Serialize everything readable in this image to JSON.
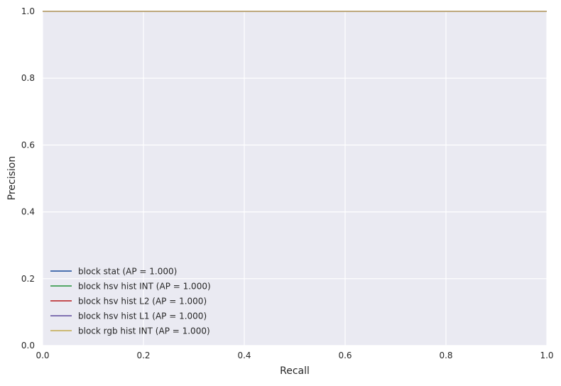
{
  "chart_data": {
    "type": "line",
    "title": "",
    "xlabel": "Recall",
    "ylabel": "Precision",
    "xlim": [
      0.0,
      1.0
    ],
    "ylim": [
      0.0,
      1.0
    ],
    "x_ticks": [
      "0.0",
      "0.2",
      "0.4",
      "0.6",
      "0.8",
      "1.0"
    ],
    "y_ticks": [
      "0.0",
      "0.2",
      "0.4",
      "0.6",
      "0.8",
      "1.0"
    ],
    "grid": true,
    "legend_position": "lower-left",
    "series": [
      {
        "name": "block stat (AP = 1.000)",
        "color": "#4c72b0",
        "x": [
          0.0,
          1.0
        ],
        "y": [
          1.0,
          1.0
        ]
      },
      {
        "name": "block hsv hist INT (AP = 1.000)",
        "color": "#55a868",
        "x": [
          0.0,
          1.0
        ],
        "y": [
          1.0,
          1.0
        ]
      },
      {
        "name": "block hsv hist L2 (AP = 1.000)",
        "color": "#c44e52",
        "x": [
          0.0,
          1.0
        ],
        "y": [
          1.0,
          1.0
        ]
      },
      {
        "name": "block hsv hist L1 (AP = 1.000)",
        "color": "#8172b2",
        "x": [
          0.0,
          1.0
        ],
        "y": [
          1.0,
          1.0
        ]
      },
      {
        "name": "block rgb hist INT (AP = 1.000)",
        "color": "#ccb974",
        "x": [
          0.0,
          1.0
        ],
        "y": [
          1.0,
          1.0
        ]
      }
    ]
  }
}
